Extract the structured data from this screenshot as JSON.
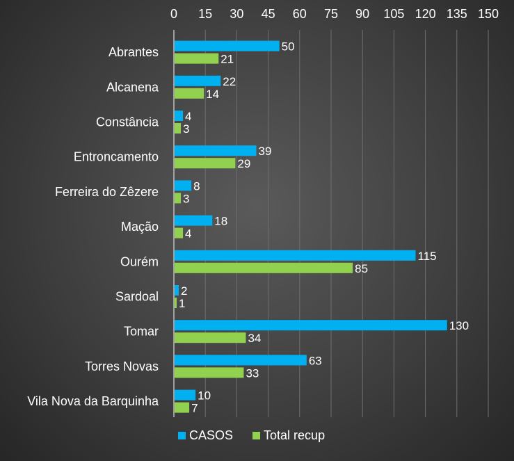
{
  "chart_data": {
    "type": "bar",
    "orientation": "horizontal",
    "categories": [
      "Abrantes",
      "Alcanena",
      "Constância",
      "Entroncamento",
      "Ferreira do Zêzere",
      "Mação",
      "Ourém",
      "Sardoal",
      "Tomar",
      "Torres Novas",
      "Vila Nova da Barquinha"
    ],
    "series": [
      {
        "name": "CASOS",
        "color": "#00b0f0",
        "values": [
          50,
          22,
          4,
          39,
          8,
          18,
          115,
          2,
          130,
          63,
          10
        ]
      },
      {
        "name": "Total recup",
        "color": "#92d050",
        "values": [
          21,
          14,
          3,
          29,
          3,
          4,
          85,
          1,
          34,
          33,
          7
        ]
      }
    ],
    "xlim": [
      0,
      150
    ],
    "xticks": [
      0,
      15,
      30,
      45,
      60,
      75,
      90,
      105,
      120,
      135,
      150
    ],
    "x_axis_position": "top",
    "grid": "vertical",
    "legend": "bottom",
    "data_labels": true,
    "title": "",
    "xlabel": "",
    "ylabel": ""
  }
}
